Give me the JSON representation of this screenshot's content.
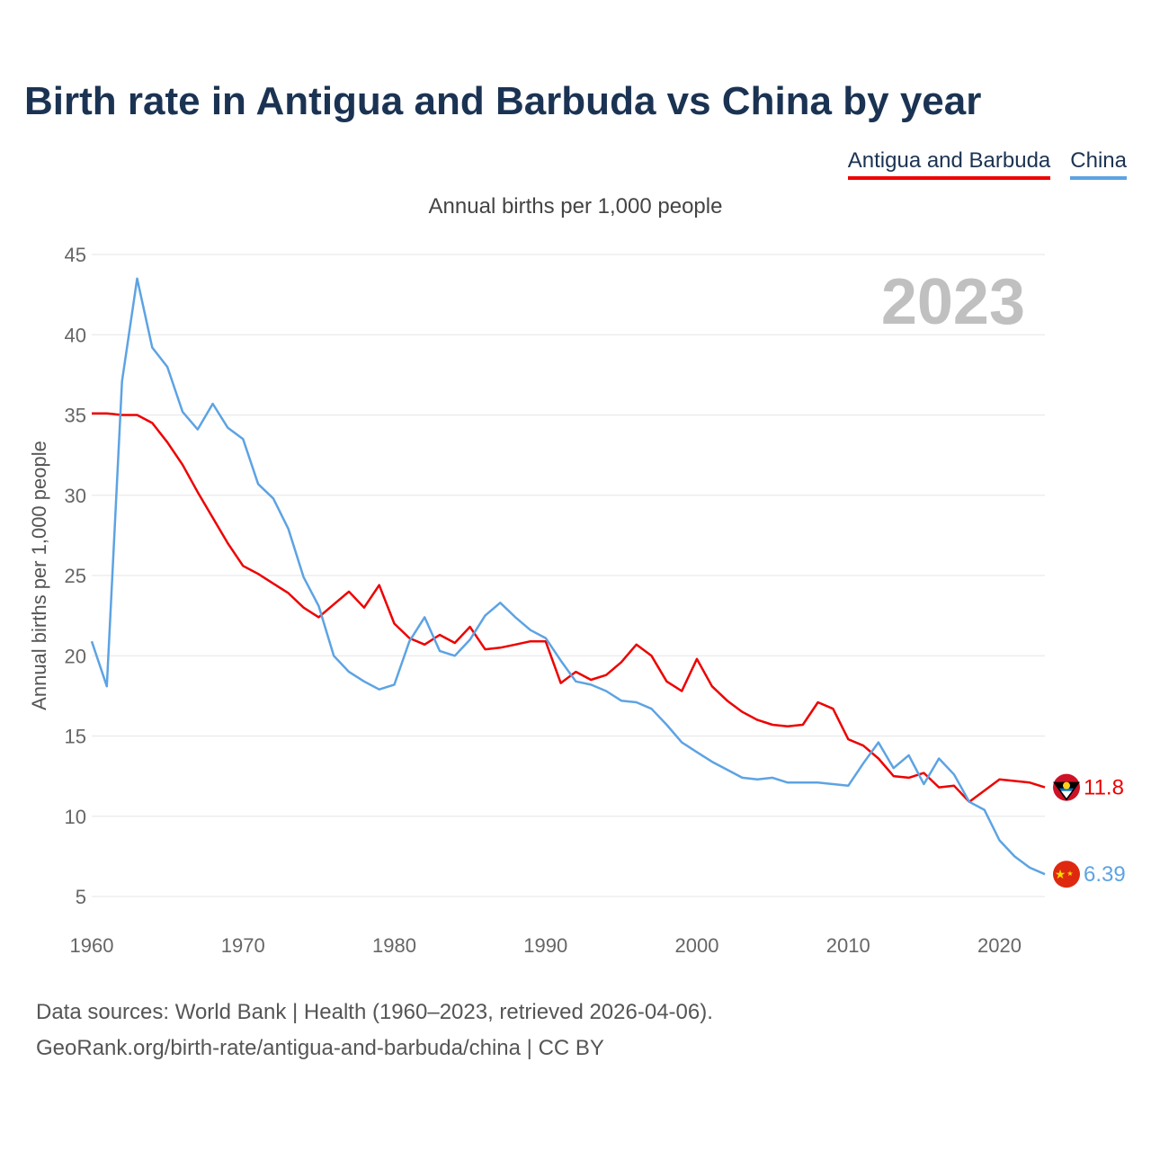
{
  "title": "Birth rate in Antigua and Barbuda vs China by year",
  "legend": [
    "Antigua and Barbuda",
    "China"
  ],
  "footer": {
    "line1": "Data sources: World Bank | Health (1960–2023, retrieved 2026-04-06).",
    "line2": "GeoRank.org/birth-rate/antigua-and-barbuda/china | CC BY"
  },
  "chart_data": {
    "type": "line",
    "title": "Birth rate in Antigua and Barbuda vs China by year",
    "subtitle": "Annual births per 1,000 people",
    "xlabel": "",
    "ylabel": "Annual births per 1,000 people",
    "year_watermark": "2023",
    "xlim": [
      1960,
      2023
    ],
    "ylim": [
      5,
      45
    ],
    "x_ticks": [
      1960,
      1970,
      1980,
      1990,
      2000,
      2010,
      2020
    ],
    "y_ticks": [
      5,
      10,
      15,
      20,
      25,
      30,
      35,
      40,
      45
    ],
    "grid": true,
    "legend_position": "top-right",
    "x": [
      1960,
      1961,
      1962,
      1963,
      1964,
      1965,
      1966,
      1967,
      1968,
      1969,
      1970,
      1971,
      1972,
      1973,
      1974,
      1975,
      1976,
      1977,
      1978,
      1979,
      1980,
      1981,
      1982,
      1983,
      1984,
      1985,
      1986,
      1987,
      1988,
      1989,
      1990,
      1991,
      1992,
      1993,
      1994,
      1995,
      1996,
      1997,
      1998,
      1999,
      2000,
      2001,
      2002,
      2003,
      2004,
      2005,
      2006,
      2007,
      2008,
      2009,
      2010,
      2011,
      2012,
      2013,
      2014,
      2015,
      2016,
      2017,
      2018,
      2019,
      2020,
      2021,
      2022,
      2023
    ],
    "series": [
      {
        "name": "Antigua and Barbuda",
        "color": "#ee0000",
        "end_label": "11.8",
        "values": [
          35.1,
          35.1,
          35.0,
          35.0,
          34.5,
          33.3,
          31.9,
          30.2,
          28.6,
          27.0,
          25.6,
          25.1,
          24.5,
          23.9,
          23.0,
          22.4,
          23.2,
          24.0,
          23.0,
          24.4,
          22.0,
          21.1,
          20.7,
          21.3,
          20.8,
          21.8,
          20.4,
          20.5,
          20.7,
          20.9,
          20.9,
          18.3,
          19.0,
          18.5,
          18.8,
          19.6,
          20.7,
          20.0,
          18.4,
          17.8,
          19.8,
          18.1,
          17.2,
          16.5,
          16.0,
          15.7,
          15.6,
          15.7,
          17.1,
          16.7,
          14.8,
          14.4,
          13.6,
          12.5,
          12.4,
          12.7,
          11.8,
          11.9,
          10.9,
          11.6,
          12.3,
          12.2,
          12.1,
          11.8
        ]
      },
      {
        "name": "China",
        "color": "#5da3e3",
        "end_label": "6.39",
        "values": [
          20.9,
          18.1,
          37.1,
          43.5,
          39.2,
          38.0,
          35.2,
          34.1,
          35.7,
          34.2,
          33.5,
          30.7,
          29.8,
          27.9,
          24.9,
          23.1,
          20.0,
          19.0,
          18.4,
          17.9,
          18.2,
          20.9,
          22.4,
          20.3,
          20.0,
          21.0,
          22.5,
          23.3,
          22.4,
          21.6,
          21.1,
          19.7,
          18.4,
          18.2,
          17.8,
          17.2,
          17.1,
          16.7,
          15.7,
          14.6,
          14.0,
          13.4,
          12.9,
          12.4,
          12.3,
          12.4,
          12.1,
          12.1,
          12.1,
          12.0,
          11.9,
          13.3,
          14.6,
          13.0,
          13.8,
          12.0,
          13.6,
          12.6,
          10.9,
          10.4,
          8.5,
          7.5,
          6.8,
          6.39
        ]
      }
    ]
  }
}
